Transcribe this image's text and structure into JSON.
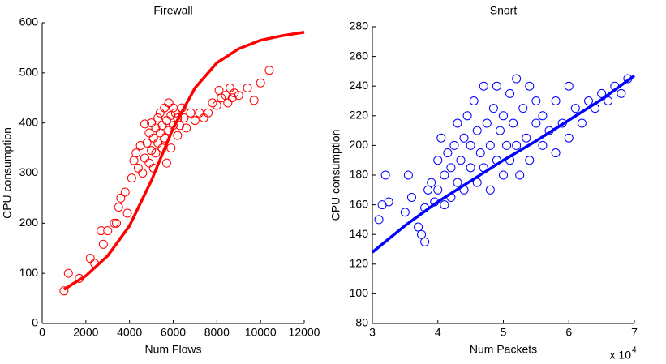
{
  "chart_data": [
    {
      "type": "scatter",
      "title": "Firewall",
      "xlabel": "Num Flows",
      "ylabel": "CPU consumption",
      "xlim": [
        0,
        12000
      ],
      "xticks": [
        0,
        2000,
        4000,
        6000,
        8000,
        10000,
        12000
      ],
      "ylim": [
        0,
        600
      ],
      "yticks": [
        0,
        100,
        200,
        300,
        400,
        500,
        600
      ],
      "series": [
        {
          "color": "#ff0000",
          "marker": "circle",
          "x": [
            1000,
            1200,
            1700,
            2200,
            2400,
            2700,
            2800,
            3000,
            3300,
            3400,
            3500,
            3600,
            3800,
            3900,
            4100,
            4200,
            4300,
            4400,
            4500,
            4600,
            4700,
            4700,
            4800,
            4900,
            4900,
            5000,
            5000,
            5100,
            5100,
            5200,
            5200,
            5300,
            5300,
            5400,
            5400,
            5500,
            5500,
            5600,
            5600,
            5700,
            5700,
            5800,
            5800,
            5900,
            5900,
            6000,
            6000,
            6100,
            6200,
            6200,
            6300,
            6400,
            6500,
            6600,
            6800,
            7000,
            7200,
            7400,
            7600,
            7800,
            8000,
            8100,
            8200,
            8400,
            8500,
            8600,
            8700,
            8800,
            9000,
            9400,
            9700,
            10000,
            10400
          ],
          "values": [
            65,
            100,
            90,
            130,
            120,
            185,
            158,
            185,
            200,
            200,
            232,
            250,
            262,
            220,
            290,
            325,
            340,
            310,
            355,
            300,
            398,
            330,
            360,
            320,
            380,
            345,
            400,
            370,
            310,
            390,
            340,
            410,
            360,
            380,
            420,
            350,
            395,
            430,
            370,
            405,
            320,
            440,
            385,
            415,
            350,
            430,
            395,
            420,
            375,
            410,
            395,
            430,
            410,
            390,
            420,
            405,
            420,
            410,
            420,
            440,
            435,
            465,
            450,
            455,
            440,
            470,
            450,
            460,
            455,
            470,
            445,
            480,
            505
          ]
        },
        {
          "color": "#ff0000",
          "marker": "line",
          "x": [
            1000,
            2000,
            3000,
            4000,
            5000,
            6000,
            7000,
            8000,
            9000,
            10000,
            11000,
            12000
          ],
          "values": [
            68,
            95,
            135,
            195,
            285,
            390,
            470,
            520,
            548,
            565,
            574,
            581
          ]
        }
      ]
    },
    {
      "type": "scatter",
      "title": "Snort",
      "xlabel": "Num Packets",
      "ylabel": "CPU consumption",
      "x_scale_note": "x 10",
      "x_scale_exponent": "4",
      "xlim": [
        3,
        7
      ],
      "xticks": [
        3,
        4,
        5,
        6,
        7
      ],
      "ylim": [
        80,
        280
      ],
      "yticks": [
        80,
        100,
        120,
        140,
        160,
        180,
        200,
        220,
        240,
        260,
        280
      ],
      "series": [
        {
          "color": "#0000ff",
          "marker": "circle",
          "x": [
            3.1,
            3.15,
            3.2,
            3.25,
            3.5,
            3.55,
            3.6,
            3.7,
            3.75,
            3.8,
            3.8,
            3.85,
            3.9,
            3.95,
            4.0,
            4.0,
            4.05,
            4.1,
            4.1,
            4.15,
            4.2,
            4.2,
            4.25,
            4.3,
            4.3,
            4.35,
            4.4,
            4.4,
            4.45,
            4.5,
            4.5,
            4.55,
            4.6,
            4.6,
            4.65,
            4.7,
            4.7,
            4.75,
            4.8,
            4.8,
            4.85,
            4.9,
            4.9,
            4.95,
            5.0,
            5.0,
            5.05,
            5.1,
            5.1,
            5.15,
            5.2,
            5.2,
            5.25,
            5.3,
            5.35,
            5.4,
            5.4,
            5.5,
            5.5,
            5.6,
            5.6,
            5.7,
            5.8,
            5.8,
            5.9,
            6.0,
            6.0,
            6.1,
            6.2,
            6.3,
            6.4,
            6.5,
            6.6,
            6.7,
            6.8,
            6.9
          ],
          "values": [
            150,
            160,
            180,
            162,
            155,
            180,
            165,
            145,
            140,
            135,
            158,
            170,
            175,
            162,
            190,
            170,
            205,
            180,
            160,
            195,
            185,
            165,
            200,
            175,
            215,
            190,
            205,
            170,
            220,
            185,
            200,
            230,
            175,
            210,
            195,
            240,
            185,
            215,
            200,
            170,
            225,
            190,
            240,
            210,
            180,
            220,
            200,
            235,
            190,
            215,
            245,
            200,
            180,
            225,
            205,
            240,
            190,
            215,
            230,
            200,
            220,
            210,
            230,
            195,
            215,
            240,
            205,
            225,
            215,
            230,
            225,
            235,
            230,
            240,
            235,
            245
          ]
        },
        {
          "color": "#0000ff",
          "marker": "line",
          "x": [
            3,
            3.5,
            4,
            4.5,
            5,
            5.5,
            6,
            6.5,
            7
          ],
          "values": [
            128,
            146,
            162,
            176,
            190,
            203,
            217,
            231,
            247
          ]
        }
      ]
    }
  ]
}
